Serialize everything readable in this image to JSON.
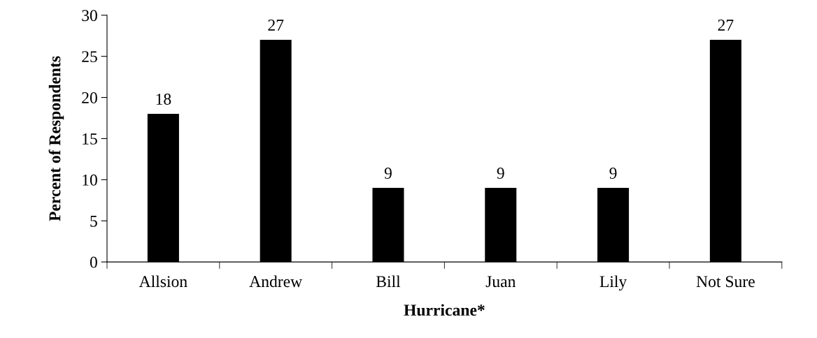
{
  "chart_data": {
    "type": "bar",
    "xlabel": "Hurricane*",
    "ylabel": "Percent of Respondents",
    "categories": [
      "Allsion",
      "Andrew",
      "Bill",
      "Juan",
      "Lily",
      "Not Sure"
    ],
    "values": [
      18,
      27,
      9,
      9,
      9,
      27
    ],
    "color": "#000000",
    "ylim": [
      0,
      30
    ],
    "yticks": [
      0,
      5,
      10,
      15,
      20,
      25,
      30
    ],
    "grid": false,
    "data_labels": true
  }
}
